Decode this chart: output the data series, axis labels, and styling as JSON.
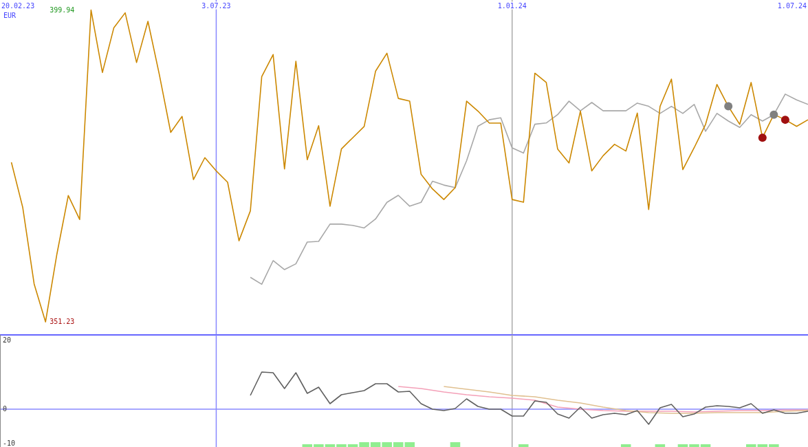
{
  "chart_data": [
    {
      "type": "line",
      "ylabel": "EUR",
      "xlim": [
        "2023-02-20",
        "2024-07-01"
      ],
      "xticks": [
        {
          "value": "2023-02-20",
          "label": "20.02.23"
        },
        {
          "value": "2023-07-03",
          "label": "3.07.23"
        },
        {
          "value": "2024-01-01",
          "label": "1.01.24"
        },
        {
          "value": "2024-07-01",
          "label": "1.07.24"
        }
      ],
      "ylim": [
        349.2,
        401.5
      ],
      "yticks": [
        351.23,
        399.94
      ],
      "grid": false,
      "ref_lines": [
        {
          "axis": "x",
          "value": "2023-07-03",
          "color": "#8888ff"
        },
        {
          "axis": "x",
          "value": "2024-01-01",
          "color": "#aaaaaa"
        }
      ],
      "x": [
        "2023-02-27",
        "2023-03-06",
        "2023-03-13",
        "2023-03-20",
        "2023-03-27",
        "2023-04-03",
        "2023-04-10",
        "2023-04-17",
        "2023-04-24",
        "2023-05-01",
        "2023-05-08",
        "2023-05-15",
        "2023-05-22",
        "2023-05-29",
        "2023-06-05",
        "2023-06-12",
        "2023-06-19",
        "2023-06-26",
        "2023-07-03",
        "2023-07-10",
        "2023-07-17",
        "2023-07-24",
        "2023-07-31",
        "2023-08-07",
        "2023-08-14",
        "2023-08-21",
        "2023-08-28",
        "2023-09-04",
        "2023-09-11",
        "2023-09-18",
        "2023-09-25",
        "2023-10-02",
        "2023-10-09",
        "2023-10-16",
        "2023-10-23",
        "2023-10-30",
        "2023-11-06",
        "2023-11-13",
        "2023-11-20",
        "2023-11-27",
        "2023-12-04",
        "2023-12-11",
        "2023-12-18",
        "2023-12-25",
        "2024-01-01",
        "2024-01-08",
        "2024-01-15",
        "2024-01-22",
        "2024-01-29",
        "2024-02-05",
        "2024-02-12",
        "2024-02-19",
        "2024-02-26",
        "2024-03-04",
        "2024-03-11",
        "2024-03-18",
        "2024-03-25",
        "2024-04-01",
        "2024-04-08",
        "2024-04-15",
        "2024-04-22",
        "2024-04-29",
        "2024-05-06",
        "2024-05-13",
        "2024-05-20",
        "2024-05-27",
        "2024-06-03",
        "2024-06-10",
        "2024-06-17",
        "2024-06-24",
        "2024-07-01"
      ],
      "series": [
        {
          "color": "#a8a8a8",
          "values": [
            null,
            null,
            null,
            null,
            null,
            null,
            null,
            null,
            null,
            null,
            null,
            null,
            null,
            null,
            null,
            null,
            null,
            null,
            null,
            null,
            null,
            358.2,
            357.1,
            360.8,
            359.4,
            360.3,
            363.7,
            363.8,
            366.5,
            366.5,
            366.3,
            365.9,
            367.3,
            369.9,
            371.0,
            369.3,
            369.9,
            373.2,
            372.6,
            372.2,
            376.4,
            381.8,
            382.8,
            383.1,
            378.4,
            377.6,
            382.1,
            382.3,
            383.6,
            385.7,
            384.2,
            385.5,
            384.2,
            384.2,
            384.2,
            385.4,
            384.9,
            383.8,
            384.9,
            383.8,
            385.2,
            381.0,
            383.8,
            382.6,
            381.6,
            383.6,
            382.6,
            383.6,
            386.8,
            385.9,
            385.2
          ]
        },
        {
          "color": "#cc8800",
          "values": [
            376.16,
            369.09,
            357.15,
            351.23,
            361.82,
            370.96,
            367.22,
            399.94,
            390.18,
            397.14,
            399.5,
            391.74,
            398.17,
            389.87,
            380.83,
            383.32,
            373.46,
            376.88,
            374.81,
            373.04,
            363.9,
            368.57,
            389.55,
            392.98,
            375.12,
            391.94,
            376.57,
            381.87,
            369.3,
            378.23,
            380.0,
            381.76,
            390.38,
            393.19,
            386.13,
            385.71,
            374.29,
            372.0,
            370.34,
            372.21,
            385.71,
            384.15,
            382.28,
            382.28,
            370.34,
            369.92,
            390.07,
            388.62,
            378.23,
            376.05,
            384.15,
            374.81,
            377.19,
            378.96,
            377.92,
            383.84,
            368.78,
            384.88,
            389.14,
            375.01,
            378.44,
            382.08,
            388.31,
            384.88,
            382.08,
            388.62,
            380.0,
            383.63,
            382.8,
            381.76,
            382.8
          ]
        },
        {
          "type": "scatter",
          "color": "#808080",
          "x": [
            "2024-05-13",
            "2024-06-10"
          ],
          "values": [
            384.9,
            383.6
          ]
        },
        {
          "type": "scatter",
          "color": "#a01010",
          "x": [
            "2024-06-03",
            "2024-06-17"
          ],
          "values": [
            380.0,
            382.8
          ]
        }
      ]
    },
    {
      "type": "line",
      "xlim": [
        "2023-02-20",
        "2024-07-01"
      ],
      "tick_labels": "y",
      "ylim": [
        -11,
        21.6
      ],
      "yticks": [
        -10,
        0,
        20
      ],
      "grid": false,
      "ref_lines": [
        {
          "axis": "x",
          "value": "2023-07-03",
          "color": "#8888ff"
        },
        {
          "axis": "x",
          "value": "2024-01-01",
          "color": "#aaaaaa"
        },
        {
          "axis": "y",
          "value": 0,
          "color": "#8888ff"
        }
      ],
      "x": [
        "2023-07-24",
        "2023-07-31",
        "2023-08-07",
        "2023-08-14",
        "2023-08-21",
        "2023-08-28",
        "2023-09-04",
        "2023-09-11",
        "2023-09-18",
        "2023-09-25",
        "2023-10-02",
        "2023-10-09",
        "2023-10-16",
        "2023-10-23",
        "2023-10-30",
        "2023-11-06",
        "2023-11-13",
        "2023-11-20",
        "2023-11-27",
        "2023-12-04",
        "2023-12-11",
        "2023-12-18",
        "2023-12-25",
        "2024-01-01",
        "2024-01-08",
        "2024-01-15",
        "2024-01-22",
        "2024-01-29",
        "2024-02-05",
        "2024-02-12",
        "2024-02-19",
        "2024-02-26",
        "2024-03-04",
        "2024-03-11",
        "2024-03-18",
        "2024-03-25",
        "2024-04-01",
        "2024-04-08",
        "2024-04-15",
        "2024-04-22",
        "2024-04-29",
        "2024-05-06",
        "2024-05-13",
        "2024-05-20",
        "2024-05-27",
        "2024-06-03",
        "2024-06-10",
        "2024-06-17",
        "2024-06-24",
        "2024-07-01"
      ],
      "series": [
        {
          "type": "bar",
          "color": "#90ee90",
          "values": [
            null,
            null,
            null,
            null,
            null,
            0.8,
            0.8,
            0.8,
            0.8,
            0.8,
            1.4,
            1.4,
            1.4,
            1.4,
            1.4,
            null,
            null,
            null,
            1.4,
            null,
            null,
            null,
            null,
            null,
            0.8,
            null,
            null,
            null,
            null,
            null,
            null,
            null,
            null,
            0.8,
            null,
            null,
            0.8,
            null,
            0.8,
            0.8,
            0.8,
            null,
            null,
            null,
            0.8,
            0.8,
            0.8,
            null,
            null,
            null
          ],
          "base": [
            null,
            null,
            null,
            null,
            null,
            -11,
            -11,
            -11,
            -11,
            -11,
            -11,
            -11,
            -11,
            -11,
            -11,
            null,
            null,
            null,
            -11,
            null,
            null,
            null,
            null,
            null,
            -11,
            null,
            null,
            null,
            null,
            null,
            null,
            null,
            null,
            -11,
            null,
            null,
            -11,
            null,
            -11,
            -11,
            -11,
            null,
            null,
            null,
            -11,
            -11,
            -11,
            null,
            null,
            null
          ]
        },
        {
          "color": "#f4a0b8",
          "x": [
            "2023-10-23",
            "2023-11-06",
            "2023-11-20",
            "2023-12-04",
            "2023-12-18",
            "2024-01-01",
            "2024-01-15",
            "2024-01-29",
            "2024-02-12",
            "2024-02-26",
            "2024-03-11",
            "2024-03-25",
            "2024-04-08",
            "2024-04-22",
            "2024-05-06",
            "2024-05-20",
            "2024-06-03",
            "2024-06-17",
            "2024-07-01"
          ],
          "values": [
            6.6,
            6,
            5,
            4.2,
            3.6,
            3.2,
            2.6,
            0.6,
            0,
            -0.4,
            -0.6,
            -0.6,
            -0.6,
            -0.8,
            -0.6,
            -0.4,
            -0.4,
            -0.2,
            -0.2
          ]
        },
        {
          "color": "#e0c090",
          "x": [
            "2023-11-20",
            "2023-12-04",
            "2023-12-18",
            "2024-01-01",
            "2024-01-15",
            "2024-01-29",
            "2024-02-12",
            "2024-02-26",
            "2024-03-11",
            "2024-03-25",
            "2024-04-08",
            "2024-04-22",
            "2024-05-06",
            "2024-05-20",
            "2024-06-03",
            "2024-06-17",
            "2024-07-01"
          ],
          "values": [
            6.6,
            5.8,
            5,
            4,
            3.6,
            2.6,
            1.8,
            0.6,
            -0.4,
            -1,
            -1.2,
            -1.2,
            -1,
            -1,
            -1,
            -0.6,
            -0.4
          ]
        },
        {
          "color": "#606060",
          "values": [
            4,
            10.8,
            10.6,
            6,
            10.6,
            4.6,
            6.4,
            1.6,
            4.2,
            4.8,
            5.4,
            7.4,
            7.4,
            5,
            5.2,
            1.6,
            0,
            -0.4,
            0.2,
            3,
            0.8,
            0,
            0,
            -2,
            -2,
            2.4,
            2,
            -1.4,
            -2.6,
            0.6,
            -2.6,
            -1.6,
            -1.2,
            -1.6,
            -0.4,
            -4.4,
            0.4,
            1.4,
            -2.2,
            -1.4,
            0.6,
            1,
            0.8,
            0.4,
            1.6,
            -1.2,
            -0.2,
            -1.2,
            -1.2,
            -0.6
          ]
        }
      ]
    }
  ]
}
